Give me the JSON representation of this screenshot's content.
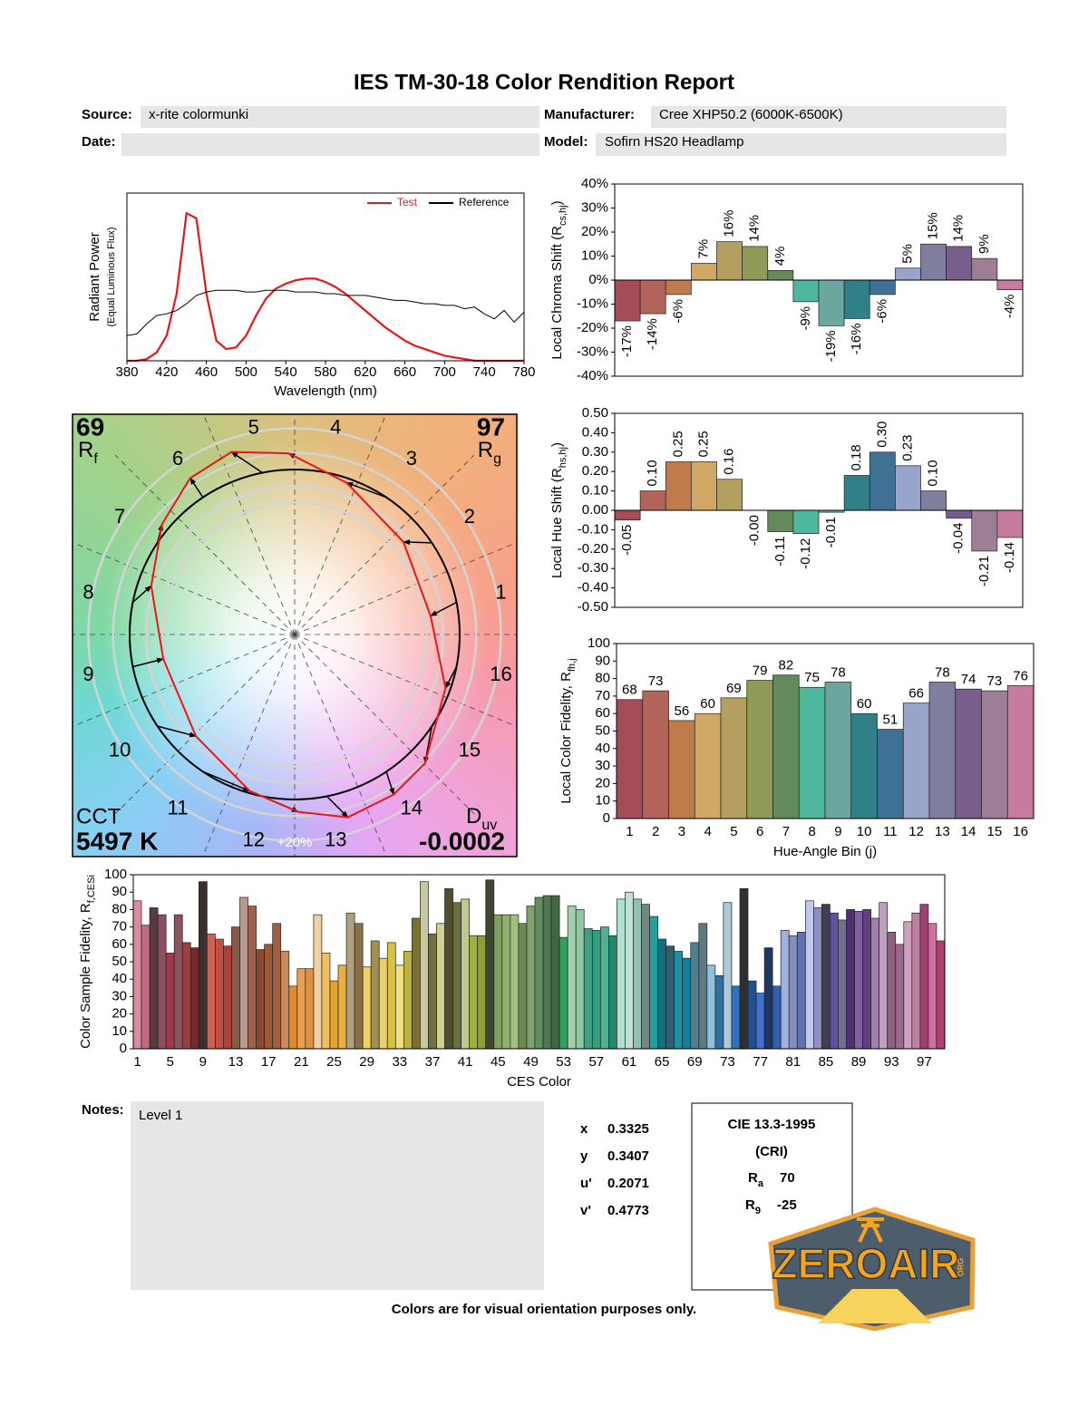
{
  "header": {
    "title": "IES TM-30-18 Color Rendition Report",
    "source_label": "Source:",
    "source": "x-rite colormunki",
    "manufacturer_label": "Manufacturer:",
    "manufacturer": "Cree XHP50.2 (6000K-6500K)",
    "date_label": "Date:",
    "model_label": "Model:",
    "model": "Sofirn HS20 Headlamp"
  },
  "chart_data": [
    {
      "type": "line",
      "ylabel": "Radiant Power",
      "ylabel_note": "(Equal Luminous Flux)",
      "xlabel": "Wavelength (nm)",
      "x": [
        380,
        390,
        400,
        410,
        420,
        430,
        440,
        450,
        460,
        470,
        480,
        490,
        500,
        510,
        520,
        530,
        540,
        550,
        560,
        570,
        580,
        590,
        600,
        610,
        620,
        630,
        640,
        650,
        660,
        670,
        680,
        690,
        700,
        710,
        720,
        730,
        740,
        750,
        760,
        770,
        780
      ],
      "xlim": [
        380,
        780
      ],
      "xticks": [
        380,
        420,
        460,
        500,
        540,
        580,
        620,
        660,
        700,
        740,
        780
      ],
      "ylim": [
        0,
        1
      ],
      "legend": "upper right",
      "series": [
        {
          "name": "Test",
          "color": "#e8161b",
          "values": [
            0,
            0,
            0.01,
            0.05,
            0.15,
            0.4,
            0.88,
            0.85,
            0.4,
            0.12,
            0.07,
            0.08,
            0.15,
            0.27,
            0.37,
            0.43,
            0.46,
            0.48,
            0.49,
            0.49,
            0.47,
            0.44,
            0.4,
            0.35,
            0.3,
            0.25,
            0.2,
            0.16,
            0.12,
            0.09,
            0.07,
            0.05,
            0.03,
            0.02,
            0.01,
            0,
            0,
            0,
            0,
            0,
            0
          ]
        },
        {
          "name": "Reference",
          "color": "#000000",
          "values": [
            0.15,
            0.16,
            0.22,
            0.27,
            0.28,
            0.3,
            0.34,
            0.39,
            0.41,
            0.42,
            0.42,
            0.42,
            0.41,
            0.41,
            0.42,
            0.42,
            0.42,
            0.41,
            0.41,
            0.41,
            0.4,
            0.4,
            0.39,
            0.39,
            0.39,
            0.38,
            0.37,
            0.36,
            0.36,
            0.35,
            0.34,
            0.34,
            0.33,
            0.33,
            0.31,
            0.32,
            0.28,
            0.25,
            0.3,
            0.23,
            0.29
          ]
        }
      ]
    },
    {
      "type": "bar",
      "ylabel": {
        "text": "Local Chroma Shift (R",
        "sub": "cs,hj",
        "end": ")"
      },
      "values": [
        -17,
        -14,
        -6,
        7,
        16,
        14,
        4,
        -9,
        -19,
        -16,
        -6,
        5,
        15,
        14,
        9,
        -4
      ],
      "value_labels": [
        "-17%",
        "-14%",
        "-6%",
        "7%",
        "16%",
        "14%",
        "4%",
        "-9%",
        "-19%",
        "-16%",
        "-6%",
        "5%",
        "15%",
        "14%",
        "9%",
        "-4%"
      ],
      "ylim": [
        -40,
        40
      ],
      "yticks": [
        {
          "value": -40,
          "label": "-40%"
        },
        {
          "value": -30,
          "label": "-30%"
        },
        {
          "value": -20,
          "label": "-20%"
        },
        {
          "value": -10,
          "label": "-10%"
        },
        {
          "value": 0,
          "label": "0%"
        },
        {
          "value": 10,
          "label": "10%"
        },
        {
          "value": 20,
          "label": "20%"
        },
        {
          "value": 30,
          "label": "30%"
        },
        {
          "value": 40,
          "label": "40%"
        }
      ],
      "colors": [
        "#a34d57",
        "#b3645a",
        "#c07b4c",
        "#d1a765",
        "#b3a060",
        "#8e9a56",
        "#648a5c",
        "#4db89b",
        "#6ca79f",
        "#2f8087",
        "#3f7194",
        "#98a4ca",
        "#7f7e9c",
        "#795e8d",
        "#9c7e95",
        "#c67d9d"
      ]
    },
    {
      "type": "bar",
      "ylabel": {
        "text": "Local Hue Shift (R",
        "sub": "hs,hj",
        "end": ")"
      },
      "values": [
        -0.05,
        0.1,
        0.25,
        0.25,
        0.16,
        0,
        -0.11,
        -0.12,
        -0.01,
        0.18,
        0.3,
        0.23,
        0.1,
        -0.04,
        -0.21,
        -0.14
      ],
      "value_labels": [
        "-0.05",
        "0.10",
        "0.25",
        "0.25",
        "0.16",
        "-0.00",
        "-0.11",
        "-0.12",
        "-0.01",
        "0.18",
        "0.30",
        "0.23",
        "0.10",
        "-0.04",
        "-0.21",
        "-0.14"
      ],
      "ylim": [
        -0.5,
        0.5
      ],
      "yticks": [
        {
          "value": -0.5,
          "label": "-0.50"
        },
        {
          "value": -0.4,
          "label": "-0.40"
        },
        {
          "value": -0.3,
          "label": "-0.30"
        },
        {
          "value": -0.2,
          "label": "-0.20"
        },
        {
          "value": -0.1,
          "label": "-0.10"
        },
        {
          "value": 0,
          "label": "0.00"
        },
        {
          "value": 0.1,
          "label": "0.10"
        },
        {
          "value": 0.2,
          "label": "0.20"
        },
        {
          "value": 0.3,
          "label": "0.30"
        },
        {
          "value": 0.4,
          "label": "0.40"
        },
        {
          "value": 0.5,
          "label": "0.50"
        }
      ],
      "colors": [
        "#a34d57",
        "#b3645a",
        "#c07b4c",
        "#d1a765",
        "#b3a060",
        "#8e9a56",
        "#648a5c",
        "#4db89b",
        "#6ca79f",
        "#2f8087",
        "#3f7194",
        "#98a4ca",
        "#7f7e9c",
        "#795e8d",
        "#9c7e95",
        "#c67d9d"
      ]
    },
    {
      "type": "bar",
      "ylabel": {
        "text": "Local Color Fidelity, R",
        "sub": "fh,j"
      },
      "xlabel": "Hue-Angle Bin (j)",
      "categories": [
        "1",
        "2",
        "3",
        "4",
        "5",
        "6",
        "7",
        "8",
        "9",
        "10",
        "11",
        "12",
        "13",
        "14",
        "15",
        "16"
      ],
      "values": [
        68,
        73,
        56,
        60,
        69,
        79,
        82,
        75,
        78,
        60,
        51,
        66,
        78,
        74,
        73,
        76
      ],
      "ylim": [
        0,
        100
      ],
      "yticks": [
        0,
        10,
        20,
        30,
        40,
        50,
        60,
        70,
        80,
        90,
        100
      ],
      "colors": [
        "#a34d57",
        "#b3645a",
        "#c07b4c",
        "#d1a765",
        "#b3a060",
        "#8e9a56",
        "#648a5c",
        "#4db89b",
        "#6ca79f",
        "#2f8087",
        "#3f7194",
        "#98a4ca",
        "#7f7e9c",
        "#795e8d",
        "#9c7e95",
        "#c67d9d"
      ]
    },
    {
      "type": "bar",
      "ylabel": {
        "text": "Color Sample Fidelity, R",
        "sub": "f,CESi"
      },
      "xlabel": "CES Color",
      "categories": [
        "1",
        null,
        null,
        null,
        "5",
        null,
        null,
        null,
        "9",
        null,
        null,
        null,
        "13",
        null,
        null,
        null,
        "17",
        null,
        null,
        null,
        "21",
        null,
        null,
        null,
        "25",
        null,
        null,
        null,
        "29",
        null,
        null,
        null,
        "33",
        null,
        null,
        null,
        "37",
        null,
        null,
        null,
        "41",
        null,
        null,
        null,
        "45",
        null,
        null,
        null,
        "49",
        null,
        null,
        null,
        "53",
        null,
        null,
        null,
        "57",
        null,
        null,
        null,
        "61",
        null,
        null,
        null,
        "65",
        null,
        null,
        null,
        "69",
        null,
        null,
        null,
        "73",
        null,
        null,
        null,
        "77",
        null,
        null,
        null,
        "81",
        null,
        null,
        null,
        "85",
        null,
        null,
        null,
        "89",
        null,
        null,
        null,
        "93",
        null,
        null,
        null,
        "97",
        null,
        null
      ],
      "values": [
        85,
        71,
        81,
        77,
        55,
        77,
        61,
        58,
        96,
        66,
        63,
        59,
        70,
        87,
        82,
        57,
        60,
        72,
        56,
        36,
        46,
        46,
        77,
        55,
        39,
        48,
        78,
        72,
        47,
        62,
        52,
        61,
        48,
        56,
        75,
        96,
        66,
        72,
        92,
        84,
        86,
        65,
        65,
        97,
        77,
        77,
        77,
        72,
        82,
        87,
        88,
        88,
        64,
        82,
        80,
        69,
        68,
        70,
        65,
        86,
        90,
        86,
        83,
        76,
        63,
        59,
        56,
        52,
        61,
        72,
        48,
        42,
        84,
        36,
        92,
        39,
        32,
        58,
        36,
        68,
        65,
        67,
        85,
        81,
        83,
        78,
        74,
        80,
        79,
        80,
        75,
        84,
        67,
        60,
        73,
        78,
        83,
        72,
        62
      ],
      "ylim": [
        0,
        100
      ],
      "yticks": [
        0,
        10,
        20,
        30,
        40,
        50,
        60,
        70,
        80,
        90,
        100
      ],
      "colors": [
        "#d98ca0",
        "#c36a80",
        "#5a3a40",
        "#8a5060",
        "#a03848",
        "#8a5460",
        "#9a4040",
        "#7a2830",
        "#3a3030",
        "#d06050",
        "#c05040",
        "#b04038",
        "#8a5a48",
        "#b89a8a",
        "#a06050",
        "#8a4a30",
        "#9a5a3a",
        "#a06040",
        "#c88a5a",
        "#e08a30",
        "#e8a050",
        "#e09040",
        "#f0d0a0",
        "#f0c060",
        "#e8a030",
        "#e8b040",
        "#b0a080",
        "#8a7048",
        "#f0d060",
        "#a09050",
        "#e8d070",
        "#d8c040",
        "#f0e080",
        "#c0b040",
        "#7a7030",
        "#c8c8a0",
        "#707040",
        "#d0d090",
        "#505030",
        "#6a7040",
        "#c0c890",
        "#a0b040",
        "#90a030",
        "#404830",
        "#80a060",
        "#90b070",
        "#a0c080",
        "#6a8a50",
        "#80a070",
        "#609060",
        "#507850",
        "#406840",
        "#30a060",
        "#a0d0b0",
        "#90c8a0",
        "#40a080",
        "#30a080",
        "#50b090",
        "#208870",
        "#b0e0d0",
        "#c0e0d8",
        "#90c0b0",
        "#708880",
        "#20a0a0",
        "#107080",
        "#306070",
        "#2090a0",
        "#1080a0",
        "#508090",
        "#607880",
        "#90c0e0",
        "#3070a0",
        "#b0c8d8",
        "#3070c0",
        "#303030",
        "#205090",
        "#4070d0",
        "#203860",
        "#3060b0",
        "#a0b0e0",
        "#8090c0",
        "#6070b0",
        "#c0c8f0",
        "#9090c0",
        "#404050",
        "#6050a0",
        "#707090",
        "#503070",
        "#8060a0",
        "#604080",
        "#a080b0",
        "#c0a0c0",
        "#906080",
        "#a06890",
        "#d0a0c0",
        "#c080a0",
        "#a04070",
        "#d070a0",
        "#b04070"
      ]
    },
    {
      "type": "vector",
      "rf": 69,
      "rf_symbol": "R",
      "rf_sub": "f",
      "rg": 97,
      "rg_symbol": "R",
      "rg_sub": "g",
      "cct_label": "CCT",
      "cct": "5497 K",
      "duv_symbol": "D",
      "duv_sub": "uv",
      "duv": -0.0002,
      "bin_labels": [
        "1",
        "2",
        "3",
        "4",
        "5",
        "6",
        "7",
        "8",
        "9",
        "10",
        "11",
        "12",
        "13",
        "14",
        "15",
        "16"
      ],
      "scale_label": "+20%",
      "test_color": "#e8161b",
      "reference_color": "#000000"
    }
  ],
  "notes": {
    "label": "Notes:",
    "text": "Level 1"
  },
  "chromaticity": [
    {
      "label": "x",
      "value": 0.3325
    },
    {
      "label": "y",
      "value": 0.3407
    },
    {
      "label": "u'",
      "value": 0.2071
    },
    {
      "label": "v'",
      "value": 0.4773
    }
  ],
  "cri": {
    "title": "CIE 13.3-1995",
    "subtitle": "(CRI)",
    "ra_symbol": "R",
    "ra_sub": "a",
    "ra": 70,
    "r9_symbol": "R",
    "r9_sub": "9",
    "r9": -25
  },
  "footer": "Colors are for visual orientation purposes only.",
  "logo": {
    "text": "ZEROAIR",
    "suffix": "ORG"
  }
}
